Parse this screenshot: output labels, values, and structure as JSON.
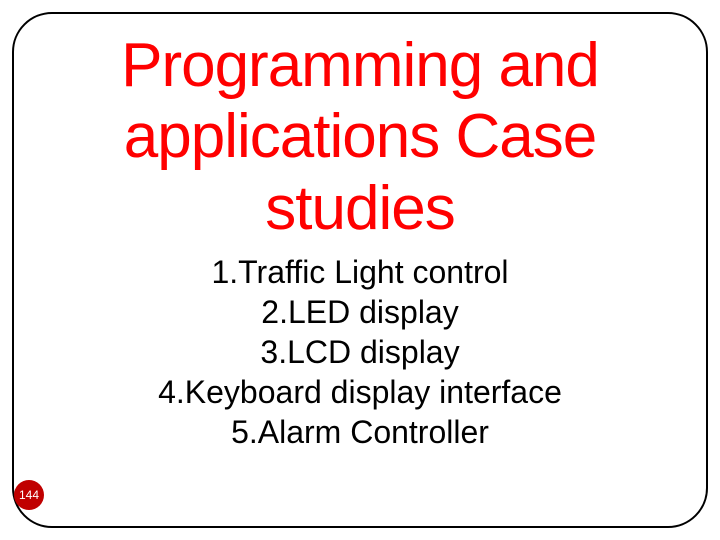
{
  "slide": {
    "title": "Programming and applications Case studies",
    "title_color": "#ff0000",
    "title_fontsize": 62,
    "title_fontweight": "normal",
    "list_items": [
      "1.Traffic Light control",
      "2.LED display",
      "3.LCD display",
      "4.Keyboard display interface",
      "5.Alarm Controller"
    ],
    "list_color": "#000000",
    "list_fontsize": 32,
    "page_number": "144",
    "page_number_bg": "#c00000",
    "page_number_color": "#ffffff",
    "frame_border_color": "#000000",
    "frame_border_radius": 40,
    "background_color": "#ffffff"
  }
}
